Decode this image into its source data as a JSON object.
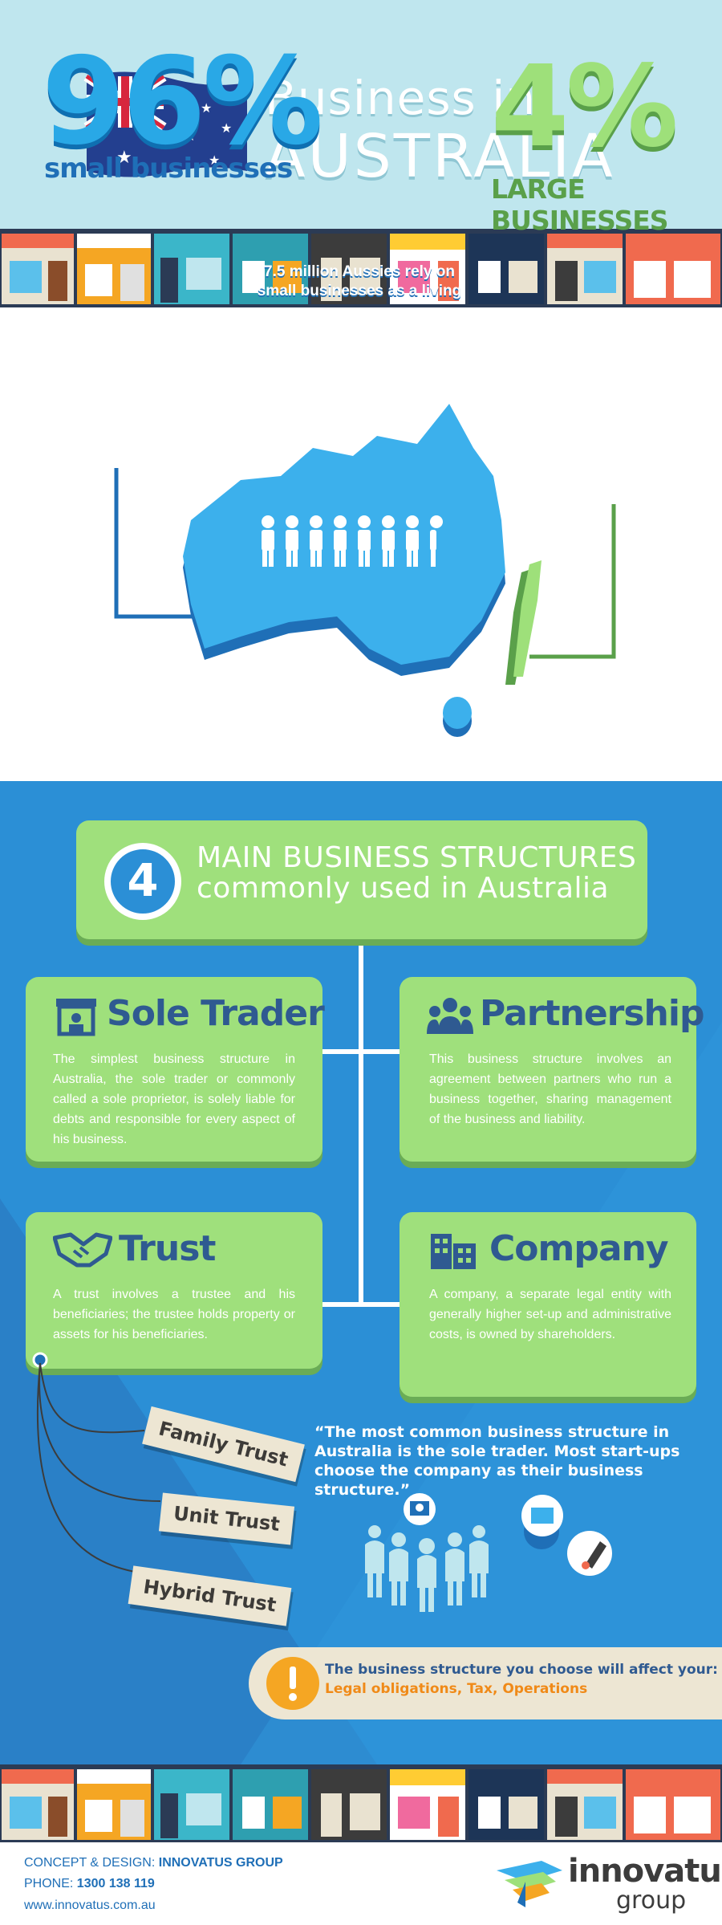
{
  "header": {
    "title_line1": "Business in",
    "title_line2": "AUSTRALIA"
  },
  "stats": {
    "small_percent": "96%",
    "small_label": "small businesses",
    "large_percent": "4%",
    "large_label": "LARGE BUSINESSES",
    "aussies_text": "7.5 million Aussies rely on small businesses as a living"
  },
  "structures": {
    "number": "4",
    "title_line1": "MAIN BUSINESS STRUCTURES",
    "title_line2": "commonly used in Australia",
    "sole_trader": {
      "title": "Sole Trader",
      "body": "The simplest business structure in Australia, the sole trader or commonly called a sole proprietor, is solely liable for debts and responsible for every aspect of his business."
    },
    "partnership": {
      "title": "Partnership",
      "body": "This business structure involves an agreement between partners who run a business together, sharing management of the business and liability."
    },
    "trust": {
      "title": "Trust",
      "body": "A trust involves a trustee and his beneficiaries; the trustee holds property or assets for his beneficiaries."
    },
    "company": {
      "title": "Company",
      "body": "A company, a separate legal entity with generally higher set-up and administrative costs, is owned by shareholders."
    },
    "trust_types": [
      "Family Trust",
      "Unit Trust",
      "Hybrid Trust"
    ],
    "quote": "“The most common business structure in Australia is the sole trader. Most start-ups choose the company as their business structure.”",
    "notice_line1": "The business structure you choose will affect your:",
    "notice_line2": "Legal obligations, Tax, Operations"
  },
  "footer": {
    "concept_label": "CONCEPT & DESIGN:",
    "concept_value": "INNOVATUS GROUP",
    "phone_label": "PHONE:",
    "phone_value": "1300 138 119",
    "website": "www.innovatus.com.au",
    "brand_line1": "innovatus",
    "brand_line2": "group"
  },
  "colors": {
    "header_bg": "#bfe6ee",
    "blue_bg": "#2b8fd6",
    "green": "#9fe07c",
    "navy": "#2f5a91",
    "orange": "#f08a18"
  }
}
